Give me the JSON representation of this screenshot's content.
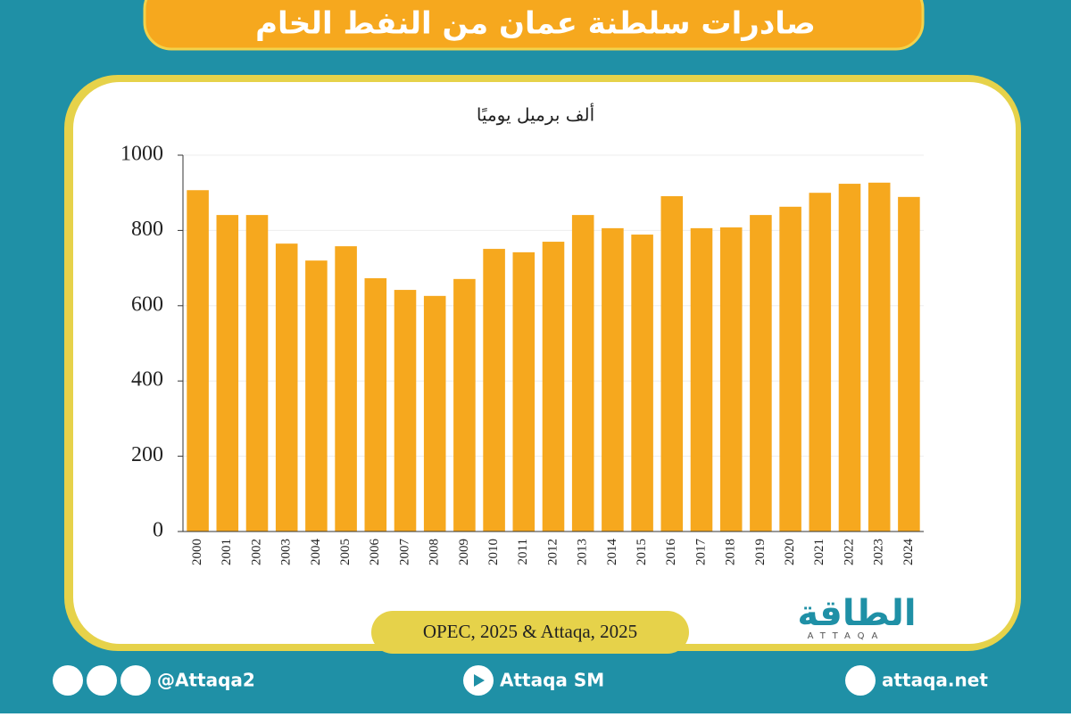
{
  "chart_data": {
    "type": "bar",
    "title": "صادرات سلطنة عمان من النفط الخام",
    "y_axis_label": "ألف برميل يوميًا",
    "source": "OPEC, 2025 & Attaqa, 2025",
    "categories": [
      "2000",
      "2001",
      "2002",
      "2003",
      "2004",
      "2005",
      "2006",
      "2007",
      "2008",
      "2009",
      "2010",
      "2011",
      "2012",
      "2013",
      "2014",
      "2015",
      "2016",
      "2017",
      "2018",
      "2019",
      "2020",
      "2021",
      "2022",
      "2023",
      "2024"
    ],
    "values": [
      907,
      841,
      841,
      765,
      720,
      758,
      673,
      642,
      626,
      671,
      751,
      742,
      770,
      841,
      806,
      789,
      891,
      806,
      808,
      841,
      863,
      900,
      924,
      927,
      889
    ],
    "color": "#f6a81e",
    "ylim": [
      0,
      1000
    ],
    "yticks": [
      0,
      200,
      400,
      600,
      800,
      1000
    ],
    "grid": true
  },
  "branding": {
    "logo": "الطاقة",
    "logo_latin": "ATTAQA",
    "social": "@Attaqa2",
    "youtube": "Attaqa SM",
    "website": "attaqa.net"
  }
}
